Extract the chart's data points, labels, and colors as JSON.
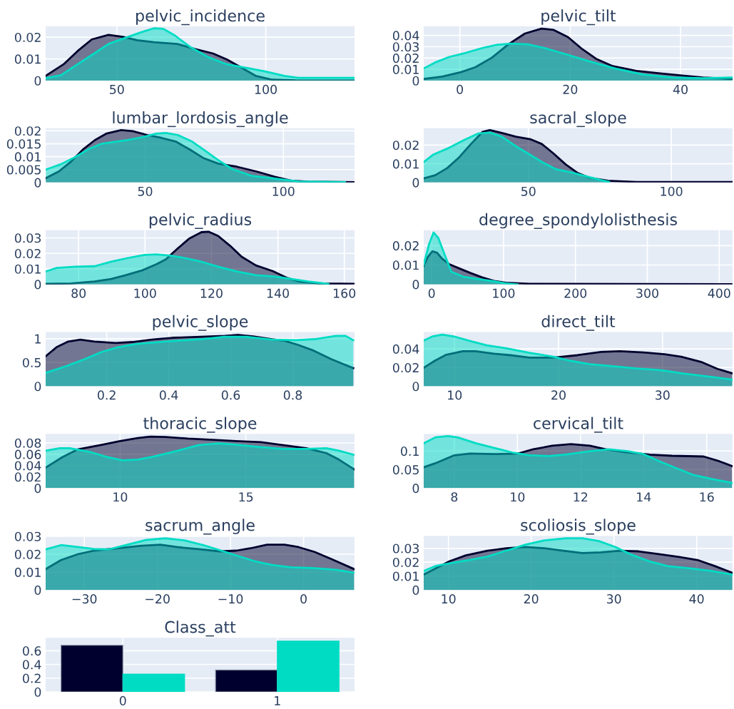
{
  "chart_data": [
    {
      "type": "area",
      "title": "pelvic_incidence",
      "xlim": [
        26.1,
        129.8
      ],
      "xticks": [
        50,
        100
      ],
      "ylim": [
        0,
        0.025
      ],
      "yticks": [
        0,
        0.01,
        0.02
      ],
      "grid": true,
      "series": [
        {
          "color": "#00002e",
          "x": [
            26.1,
            32.1,
            36.8,
            41.6,
            47.2,
            52,
            56.8,
            62.4,
            70.3,
            75.9,
            82.3,
            87,
            91.9,
            96.6,
            102.2,
            110,
            129.8
          ],
          "values": [
            0.0022,
            0.0075,
            0.0136,
            0.019,
            0.0211,
            0.0202,
            0.0186,
            0.0177,
            0.0169,
            0.0147,
            0.0125,
            0.0097,
            0.0059,
            0.0022,
            0.0004,
            0.0001,
            0
          ]
        },
        {
          "color": "#00dcc4",
          "x": [
            26.1,
            31.3,
            36.8,
            42.4,
            47.2,
            52.8,
            58.4,
            62.4,
            65.6,
            69.5,
            74.3,
            80.7,
            87,
            93.5,
            99.8,
            106.2,
            111,
            129.8
          ],
          "values": [
            0.0011,
            0.0025,
            0.0075,
            0.0125,
            0.0169,
            0.0197,
            0.0224,
            0.0241,
            0.0239,
            0.0208,
            0.0158,
            0.0108,
            0.0075,
            0.0059,
            0.0042,
            0.0022,
            0.0013,
            0.0013
          ]
        }
      ]
    },
    {
      "type": "area",
      "title": "pelvic_tilt",
      "xlim": [
        -6.55,
        49.43
      ],
      "xticks": [
        0,
        20,
        40
      ],
      "ylim": [
        0,
        0.048
      ],
      "yticks": [
        0,
        0.01,
        0.02,
        0.03,
        0.04
      ],
      "grid": true,
      "series": [
        {
          "color": "#00002e",
          "x": [
            -6.55,
            -3.2,
            0.2,
            2.8,
            5.8,
            8.8,
            11.8,
            14.8,
            17,
            19.6,
            22.2,
            24.7,
            27.7,
            32,
            36.3,
            40.6,
            44.1,
            49.4
          ],
          "values": [
            0.0015,
            0.0036,
            0.0075,
            0.0118,
            0.0203,
            0.0321,
            0.0417,
            0.046,
            0.0449,
            0.0385,
            0.0278,
            0.0193,
            0.0128,
            0.0086,
            0.0064,
            0.0043,
            0.0028,
            0.0015
          ]
        },
        {
          "color": "#00dcc4",
          "x": [
            -6.55,
            -4.5,
            -1.9,
            1.1,
            4.1,
            6.7,
            9.2,
            12.3,
            15.3,
            19.1,
            23.4,
            28.2,
            33.3,
            38.5,
            44.1,
            49.4
          ],
          "values": [
            0.0107,
            0.016,
            0.021,
            0.0246,
            0.0289,
            0.0317,
            0.0327,
            0.0321,
            0.0289,
            0.0235,
            0.0171,
            0.0107,
            0.0053,
            0.0028,
            0.0021,
            0.0028
          ]
        }
      ]
    },
    {
      "type": "area",
      "title": "lumbar_lordosis_angle",
      "xlim": [
        14,
        125.74
      ],
      "xticks": [
        50,
        100
      ],
      "ylim": [
        0,
        0.021
      ],
      "yticks": [
        0,
        0.005,
        0.01,
        0.015,
        0.02
      ],
      "grid": true,
      "series": [
        {
          "color": "#00002e",
          "x": [
            14.1,
            18.8,
            23.1,
            27.4,
            31.8,
            36.1,
            41.3,
            45.5,
            50.7,
            55.8,
            61,
            66.1,
            71.2,
            76.4,
            83.2,
            90.1,
            96.9,
            102.9,
            108.9,
            125.7
          ],
          "values": [
            0.0017,
            0.0043,
            0.008,
            0.0127,
            0.0164,
            0.019,
            0.0203,
            0.0199,
            0.0184,
            0.0173,
            0.0159,
            0.0128,
            0.0094,
            0.0073,
            0.0061,
            0.0043,
            0.0022,
            0.0007,
            0.0003,
            0.0001
          ]
        },
        {
          "color": "#00dcc4",
          "x": [
            14.1,
            19.6,
            24.8,
            29.9,
            34.2,
            38.5,
            43.6,
            48.8,
            54,
            57.5,
            61.8,
            66.9,
            71.2,
            76.4,
            81.5,
            88.4,
            96.9,
            105.5,
            122.3
          ],
          "values": [
            0.005,
            0.0071,
            0.0099,
            0.0131,
            0.015,
            0.0157,
            0.0164,
            0.0175,
            0.0189,
            0.0192,
            0.0184,
            0.0159,
            0.0127,
            0.0087,
            0.0052,
            0.0026,
            0.0015,
            0.0004,
            0.0001
          ]
        }
      ]
    },
    {
      "type": "area",
      "title": "sacral_slope",
      "xlim": [
        13.37,
        121.43
      ],
      "xticks": [
        50,
        100
      ],
      "ylim": [
        0,
        0.029
      ],
      "yticks": [
        0,
        0.01,
        0.02
      ],
      "grid": true,
      "series": [
        {
          "color": "#00002e",
          "x": [
            13.4,
            17.4,
            21.6,
            25.8,
            29.9,
            34,
            36.5,
            40.7,
            45.6,
            50.6,
            54.7,
            58.8,
            63,
            67.1,
            71.2,
            77.8,
            87.8,
            121.4
          ],
          "values": [
            0.0022,
            0.0039,
            0.0077,
            0.0135,
            0.0206,
            0.0271,
            0.028,
            0.0265,
            0.0245,
            0.0232,
            0.0206,
            0.0155,
            0.0097,
            0.0052,
            0.0026,
            0.0009,
            0.0003,
            0.0003
          ]
        },
        {
          "color": "#00dcc4",
          "x": [
            13.4,
            16.6,
            21.6,
            27.4,
            32.4,
            36.5,
            40.7,
            45.6,
            50.6,
            55.5,
            59.6,
            65.4,
            70.4,
            75.3,
            78.2
          ],
          "values": [
            0.011,
            0.0148,
            0.0181,
            0.0226,
            0.0262,
            0.0267,
            0.0245,
            0.0194,
            0.0148,
            0.0103,
            0.0071,
            0.0052,
            0.0032,
            0.0013,
            0.0003
          ]
        }
      ]
    },
    {
      "type": "area",
      "title": "pelvic_radius",
      "xlim": [
        70.08,
        163.07
      ],
      "xticks": [
        80,
        100,
        120,
        140,
        160
      ],
      "ylim": [
        0,
        0.035
      ],
      "yticks": [
        0,
        0.01,
        0.02,
        0.03
      ],
      "grid": true,
      "series": [
        {
          "color": "#00002e",
          "x": [
            70.1,
            77.7,
            84.8,
            89.8,
            94.1,
            99.1,
            103.4,
            106.3,
            109.9,
            113.4,
            117,
            119.1,
            122,
            125.6,
            129.1,
            133.4,
            138.4,
            142.6,
            146.2,
            152.6,
            162.9
          ],
          "values": [
            0.0003,
            0.0006,
            0.0019,
            0.0035,
            0.0059,
            0.009,
            0.013,
            0.0162,
            0.0233,
            0.0297,
            0.0337,
            0.034,
            0.0313,
            0.0249,
            0.0178,
            0.0122,
            0.0086,
            0.0043,
            0.0019,
            0.0006,
            0.0003
          ]
        },
        {
          "color": "#00dcc4",
          "x": [
            70.1,
            73.4,
            79.1,
            84.8,
            89.8,
            94.8,
            99.8,
            103.4,
            107.7,
            112,
            117,
            122,
            127.7,
            133.4,
            139.1,
            144.1,
            149.1,
            155.2
          ],
          "values": [
            0.0083,
            0.0106,
            0.0114,
            0.0117,
            0.0146,
            0.017,
            0.019,
            0.0194,
            0.0186,
            0.017,
            0.0146,
            0.0114,
            0.0083,
            0.0059,
            0.0051,
            0.0035,
            0.0019,
            0.0003
          ]
        }
      ]
    },
    {
      "type": "area",
      "title": "degree_spondylolisthesis",
      "xlim": [
        -11.06,
        418.54
      ],
      "xticks": [
        0,
        100,
        200,
        300,
        400
      ],
      "ylim": [
        0,
        0.028
      ],
      "yticks": [
        0,
        0.01,
        0.02
      ],
      "grid": true,
      "series": [
        {
          "color": "#00002e",
          "x": [
            -11,
            -5.6,
            1,
            7.6,
            14.2,
            24.1,
            37.3,
            53.7,
            70.2,
            86.7,
            103.2,
            136.2,
            417
          ],
          "values": [
            0.0096,
            0.014,
            0.0171,
            0.0163,
            0.0134,
            0.0105,
            0.0084,
            0.0059,
            0.0036,
            0.0018,
            0.0008,
            0.0003,
            0.0001
          ]
        },
        {
          "color": "#00dcc4",
          "x": [
            -11,
            -4,
            2.6,
            9.2,
            17.5,
            27.4,
            43.9,
            63.6,
            83.4,
            103.2,
            119.7
          ],
          "values": [
            0.0103,
            0.0203,
            0.0268,
            0.024,
            0.0159,
            0.0065,
            0.004,
            0.0028,
            0.0018,
            0.0005,
            0
          ]
        }
      ]
    },
    {
      "type": "area",
      "title": "pelvic_slope",
      "xlim": [
        0.003,
        0.999
      ],
      "xticks": [
        0.2,
        0.4,
        0.6,
        0.8
      ],
      "ylim": [
        0,
        1.14
      ],
      "yticks": [
        0,
        0.5,
        1
      ],
      "grid": true,
      "series": [
        {
          "color": "#00002e",
          "x": [
            0.003,
            0.038,
            0.076,
            0.115,
            0.16,
            0.229,
            0.283,
            0.344,
            0.412,
            0.504,
            0.58,
            0.626,
            0.672,
            0.733,
            0.771,
            0.817,
            0.863,
            0.924,
            0.995
          ],
          "values": [
            0.63,
            0.82,
            0.94,
            0.98,
            0.94,
            0.91,
            0.93,
            0.98,
            1.02,
            1.04,
            1.06,
            1.08,
            1.05,
            0.99,
            0.96,
            0.87,
            0.76,
            0.57,
            0.38
          ]
        },
        {
          "color": "#00dcc4",
          "x": [
            0.003,
            0.068,
            0.129,
            0.183,
            0.236,
            0.297,
            0.389,
            0.504,
            0.58,
            0.649,
            0.733,
            0.809,
            0.87,
            0.939,
            0.969,
            0.995
          ],
          "values": [
            0.28,
            0.42,
            0.57,
            0.72,
            0.82,
            0.89,
            0.94,
            0.99,
            1.04,
            1.04,
            0.98,
            0.97,
            0.99,
            1.06,
            1.06,
            0.97
          ]
        }
      ]
    },
    {
      "type": "area",
      "title": "direct_tilt",
      "xlim": [
        7.03,
        36.74
      ],
      "xticks": [
        10,
        20,
        30
      ],
      "ylim": [
        0,
        0.058
      ],
      "yticks": [
        0,
        0.02,
        0.04
      ],
      "grid": true,
      "series": [
        {
          "color": "#00002e",
          "x": [
            7.03,
            8.1,
            9.2,
            10.8,
            12,
            13.8,
            15.4,
            17.2,
            19.5,
            21.8,
            24.1,
            25.9,
            28.2,
            30.2,
            31.8,
            33.7,
            35.3,
            36.7
          ],
          "values": [
            0.0197,
            0.0273,
            0.0337,
            0.0375,
            0.0375,
            0.0349,
            0.0332,
            0.0306,
            0.0306,
            0.0332,
            0.0367,
            0.0375,
            0.0362,
            0.0342,
            0.0316,
            0.0261,
            0.0185,
            0.0139
          ]
        },
        {
          "color": "#00dcc4",
          "x": [
            7.03,
            7.9,
            8.8,
            9.9,
            11.5,
            13.1,
            15,
            17.2,
            19.5,
            21.1,
            23,
            25.2,
            27.5,
            29.8,
            32.1,
            34.4,
            36.7
          ],
          "values": [
            0.0489,
            0.0534,
            0.0552,
            0.0534,
            0.0484,
            0.0438,
            0.0405,
            0.0357,
            0.0316,
            0.0273,
            0.0235,
            0.0215,
            0.019,
            0.0172,
            0.0134,
            0.0104,
            0.0071
          ]
        }
      ]
    },
    {
      "type": "area",
      "title": "thoracic_slope",
      "xlim": [
        7.04,
        19.32
      ],
      "xticks": [
        10,
        15
      ],
      "ylim": [
        0,
        0.096
      ],
      "yticks": [
        0,
        0.02,
        0.04,
        0.06,
        0.08
      ],
      "grid": true,
      "series": [
        {
          "color": "#00002e",
          "x": [
            7.04,
            7.7,
            8.3,
            9.2,
            10,
            10.7,
            11.2,
            11.8,
            12.7,
            13.7,
            14.6,
            15.6,
            16.5,
            17.4,
            18.2,
            18.7,
            19.3
          ],
          "values": [
            0.0364,
            0.0548,
            0.0684,
            0.0761,
            0.0834,
            0.0886,
            0.0911,
            0.0907,
            0.0877,
            0.0856,
            0.0834,
            0.0813,
            0.0761,
            0.0706,
            0.062,
            0.0505,
            0.0334
          ]
        },
        {
          "color": "#00dcc4",
          "x": [
            7.04,
            7.6,
            8,
            8.8,
            9.5,
            10.1,
            10.7,
            11.3,
            12.3,
            13.1,
            13.9,
            14.6,
            15.6,
            16.5,
            17.4,
            18.2,
            18.7,
            19.3
          ],
          "values": [
            0.0663,
            0.0706,
            0.0706,
            0.0642,
            0.0548,
            0.0492,
            0.0505,
            0.0556,
            0.0663,
            0.0761,
            0.0791,
            0.077,
            0.0727,
            0.0693,
            0.0693,
            0.0706,
            0.0663,
            0.059
          ]
        }
      ]
    },
    {
      "type": "area",
      "title": "cervical_tilt",
      "xlim": [
        7.03,
        16.82
      ],
      "xticks": [
        8,
        10,
        12,
        14,
        16
      ],
      "ylim": [
        0,
        0.146
      ],
      "yticks": [
        0,
        0.05,
        0.1
      ],
      "grid": true,
      "series": [
        {
          "color": "#00002e",
          "x": [
            7.03,
            7.4,
            8,
            8.5,
            9.3,
            10,
            10.5,
            11.1,
            11.7,
            12.3,
            12.8,
            13.4,
            14.2,
            14.9,
            15.9,
            16.4,
            16.8
          ],
          "values": [
            0.0561,
            0.0671,
            0.0884,
            0.0929,
            0.0916,
            0.0929,
            0.1045,
            0.1142,
            0.1187,
            0.1142,
            0.1045,
            0.0968,
            0.0903,
            0.0871,
            0.0852,
            0.0723,
            0.0594
          ]
        },
        {
          "color": "#00dcc4",
          "x": [
            7.03,
            7.4,
            7.8,
            8.1,
            8.7,
            9.3,
            9.9,
            10.4,
            11,
            11.5,
            12.3,
            12.9,
            13.5,
            14,
            14.5,
            15.1,
            15.6,
            16.2,
            16.8
          ],
          "values": [
            0.1206,
            0.1368,
            0.14,
            0.1368,
            0.1206,
            0.1077,
            0.0948,
            0.0884,
            0.0865,
            0.0903,
            0.0994,
            0.1045,
            0.0994,
            0.0916,
            0.0723,
            0.0516,
            0.0348,
            0.0239,
            0.0142
          ]
        }
      ]
    },
    {
      "type": "area",
      "title": "sacrum_angle",
      "xlim": [
        -35.29,
        6.97
      ],
      "xticks": [
        {
          "value": -30,
          "label": "−30"
        },
        {
          "value": -20,
          "label": "−20"
        },
        {
          "value": -10,
          "label": "−10"
        },
        0
      ],
      "ylim": [
        0,
        0.0303
      ],
      "yticks": [
        0,
        0.01,
        0.02,
        0.03
      ],
      "grid": true,
      "series": [
        {
          "color": "#00002e",
          "x": [
            -35.29,
            -33.2,
            -30.9,
            -28.7,
            -25.4,
            -22.2,
            -19.6,
            -17.3,
            -14.1,
            -11.5,
            -9.2,
            -7.3,
            -5,
            -2.6,
            -0.7,
            1.5,
            3.8,
            6.9
          ],
          "values": [
            0.0117,
            0.0167,
            0.02,
            0.022,
            0.0233,
            0.0247,
            0.0253,
            0.024,
            0.0227,
            0.0216,
            0.022,
            0.0233,
            0.0253,
            0.0253,
            0.024,
            0.0213,
            0.0173,
            0.0117
          ]
        },
        {
          "color": "#00dcc4",
          "x": [
            -35.29,
            -33.2,
            -30.9,
            -28.7,
            -26.7,
            -24.1,
            -21.5,
            -18.9,
            -16.3,
            -13.7,
            -11.8,
            -9.2,
            -6.6,
            -4.3,
            -1.7,
            1.2,
            4.5,
            6.9
          ],
          "values": [
            0.0227,
            0.0251,
            0.024,
            0.0229,
            0.0227,
            0.0253,
            0.028,
            0.0289,
            0.0277,
            0.0251,
            0.0227,
            0.0193,
            0.016,
            0.014,
            0.0127,
            0.0123,
            0.0113,
            0.0096
          ]
        }
      ]
    },
    {
      "type": "area",
      "title": "scoliosis_slope",
      "xlim": [
        7.01,
        44.34
      ],
      "xticks": [
        10,
        20,
        30,
        40
      ],
      "ylim": [
        0,
        0.039
      ],
      "yticks": [
        0,
        0.01,
        0.02,
        0.03
      ],
      "grid": true,
      "series": [
        {
          "color": "#00002e",
          "x": [
            7.01,
            8.4,
            10.1,
            12.1,
            14.7,
            17,
            19.3,
            21.6,
            23.9,
            26.2,
            28.4,
            30.7,
            33,
            35.6,
            37.9,
            40.2,
            42.2,
            44.3
          ],
          "values": [
            0.0111,
            0.0154,
            0.0206,
            0.0249,
            0.0283,
            0.03,
            0.0309,
            0.03,
            0.0283,
            0.0266,
            0.0271,
            0.0283,
            0.0278,
            0.0257,
            0.0237,
            0.0214,
            0.0172,
            0.0124
          ]
        },
        {
          "color": "#00dcc4",
          "x": [
            7.01,
            8.4,
            10.1,
            12.4,
            14.7,
            17,
            19.3,
            21.6,
            24.2,
            26.2,
            28.2,
            30.2,
            32,
            34.3,
            36.5,
            39.4,
            41.7,
            44.3
          ],
          "values": [
            0.0137,
            0.0172,
            0.0192,
            0.0214,
            0.024,
            0.0283,
            0.0326,
            0.0357,
            0.0372,
            0.0372,
            0.0352,
            0.0309,
            0.0257,
            0.0206,
            0.0172,
            0.0154,
            0.0137,
            0.0111
          ]
        }
      ]
    },
    {
      "type": "bar",
      "title": "Class_att",
      "categories": [
        "0",
        "1"
      ],
      "ylim": [
        0,
        0.79
      ],
      "yticks": [
        0,
        0.2,
        0.4,
        0.6
      ],
      "grid": true,
      "series": [
        {
          "color": "#00002e",
          "values": [
            0.68,
            0.32
          ]
        },
        {
          "color": "#00dcc4",
          "values": [
            0.26,
            0.74
          ]
        }
      ]
    }
  ]
}
